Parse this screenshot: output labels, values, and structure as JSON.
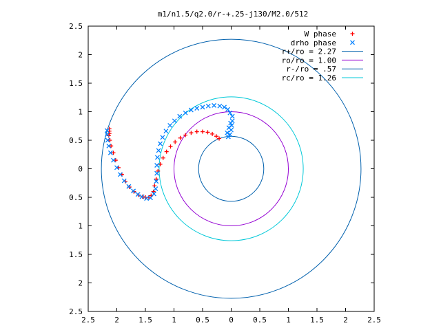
{
  "chart_data": {
    "type": "scatter",
    "title": "m1/n1.5/q2.0/r-+.25-j130/M2.0/512",
    "xlabel": "",
    "ylabel": "",
    "xlim": [
      2.5,
      -2.5
    ],
    "ylim": [
      -2.5,
      2.5
    ],
    "x_tick_values": [
      2.5,
      2,
      1.5,
      1,
      0.5,
      0,
      -0.5,
      -1,
      -1.5,
      -2,
      -2.5
    ],
    "x_tick_labels": [
      "2.5",
      "2",
      "1.5",
      "1",
      "0.5",
      "0",
      "0.5",
      "1",
      "1.5",
      "2",
      "2.5"
    ],
    "y_tick_values": [
      2.5,
      2,
      1.5,
      1,
      0.5,
      0,
      -0.5,
      -1,
      -1.5,
      -2,
      -2.5
    ],
    "y_tick_labels": [
      "2.5",
      "2",
      "1.5",
      "1",
      "0.5",
      "0",
      "0.5",
      "1",
      "1.5",
      "2",
      "2.5"
    ],
    "grid": false,
    "legend_position": "top-right",
    "series": [
      {
        "name": "W phase",
        "marker": "+",
        "color": "#ff0000",
        "points": [
          [
            2.13,
            0.7
          ],
          [
            2.13,
            0.66
          ],
          [
            2.13,
            0.62
          ],
          [
            2.14,
            0.58
          ],
          [
            2.12,
            0.5
          ],
          [
            2.1,
            0.4
          ],
          [
            2.06,
            0.28
          ],
          [
            2.02,
            0.15
          ],
          [
            1.97,
            0.02
          ],
          [
            1.91,
            -0.1
          ],
          [
            1.85,
            -0.22
          ],
          [
            1.78,
            -0.32
          ],
          [
            1.7,
            -0.4
          ],
          [
            1.62,
            -0.46
          ],
          [
            1.55,
            -0.49
          ],
          [
            1.5,
            -0.5
          ],
          [
            1.44,
            -0.5
          ],
          [
            1.4,
            -0.47
          ],
          [
            1.36,
            -0.4
          ],
          [
            1.34,
            -0.3
          ],
          [
            1.31,
            -0.18
          ],
          [
            1.28,
            -0.04
          ],
          [
            1.24,
            0.08
          ],
          [
            1.19,
            0.19
          ],
          [
            1.13,
            0.3
          ],
          [
            1.06,
            0.39
          ],
          [
            0.98,
            0.47
          ],
          [
            0.89,
            0.54
          ],
          [
            0.8,
            0.59
          ],
          [
            0.7,
            0.63
          ],
          [
            0.6,
            0.65
          ],
          [
            0.5,
            0.65
          ],
          [
            0.41,
            0.64
          ],
          [
            0.33,
            0.61
          ],
          [
            0.26,
            0.57
          ],
          [
            0.21,
            0.53
          ]
        ]
      },
      {
        "name": "drho phase",
        "marker": "x",
        "color": "#0080ff",
        "points": [
          [
            2.17,
            0.67
          ],
          [
            2.17,
            0.6
          ],
          [
            2.16,
            0.5
          ],
          [
            2.14,
            0.4
          ],
          [
            2.11,
            0.28
          ],
          [
            2.06,
            0.15
          ],
          [
            2.0,
            0.02
          ],
          [
            1.94,
            -0.1
          ],
          [
            1.87,
            -0.21
          ],
          [
            1.79,
            -0.31
          ],
          [
            1.71,
            -0.39
          ],
          [
            1.63,
            -0.45
          ],
          [
            1.56,
            -0.49
          ],
          [
            1.48,
            -0.52
          ],
          [
            1.41,
            -0.51
          ],
          [
            1.35,
            -0.44
          ],
          [
            1.32,
            -0.35
          ],
          [
            1.31,
            -0.22
          ],
          [
            1.3,
            -0.08
          ],
          [
            1.3,
            0.06
          ],
          [
            1.29,
            0.2
          ],
          [
            1.27,
            0.32
          ],
          [
            1.24,
            0.44
          ],
          [
            1.2,
            0.55
          ],
          [
            1.14,
            0.66
          ],
          [
            1.07,
            0.76
          ],
          [
            0.99,
            0.84
          ],
          [
            0.9,
            0.92
          ],
          [
            0.8,
            0.98
          ],
          [
            0.7,
            1.03
          ],
          [
            0.6,
            1.06
          ],
          [
            0.5,
            1.08
          ],
          [
            0.4,
            1.1
          ],
          [
            0.3,
            1.11
          ],
          [
            0.2,
            1.1
          ],
          [
            0.12,
            1.08
          ],
          [
            0.06,
            1.04
          ],
          [
            0.02,
            0.98
          ],
          [
            -0.02,
            0.92
          ],
          [
            -0.02,
            0.84
          ],
          [
            -0.01,
            0.76
          ],
          [
            0.0,
            0.68
          ],
          [
            0.02,
            0.6
          ],
          [
            0.05,
            0.56
          ],
          [
            0.07,
            0.63
          ],
          [
            0.04,
            0.72
          ],
          [
            0.01,
            0.8
          ]
        ]
      }
    ],
    "circles": [
      {
        "name": "r+/ro = 2.27",
        "radius": 2.27,
        "color": "#0060ad"
      },
      {
        "name": "ro/ro = 1.00",
        "radius": 1.0,
        "color": "#9400d3"
      },
      {
        "name": "r-/ro = .57",
        "radius": 0.57,
        "color": "#0060ad"
      },
      {
        "name": "rc/ro = 1.26",
        "radius": 1.26,
        "color": "#00c8d8"
      }
    ]
  }
}
